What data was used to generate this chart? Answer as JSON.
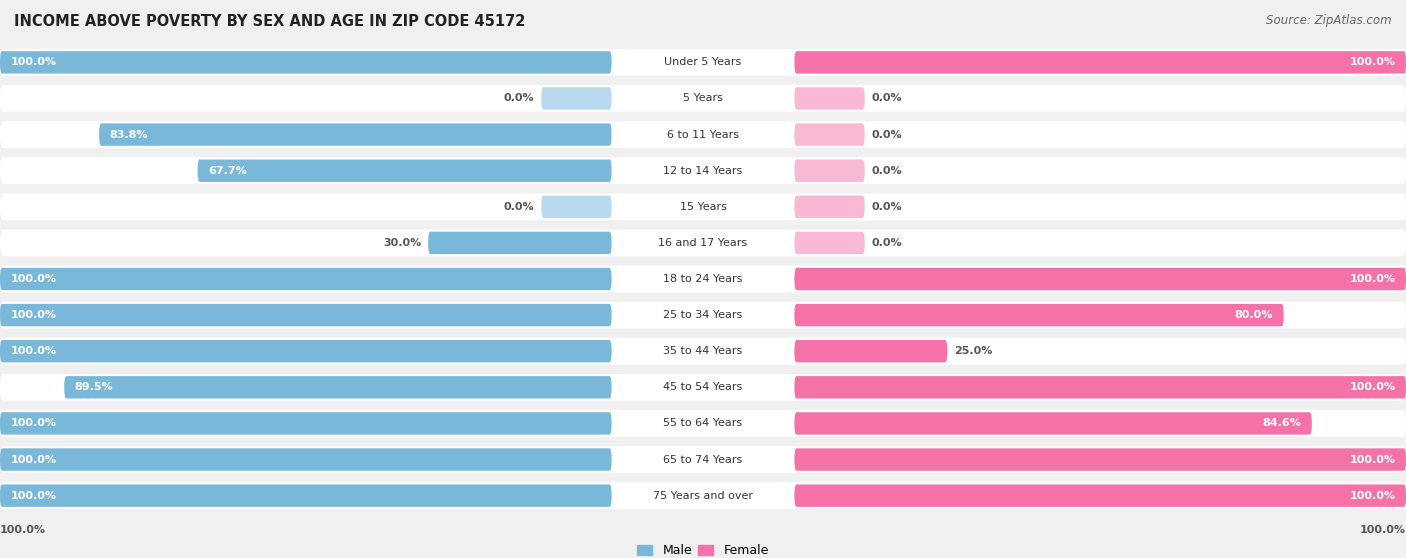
{
  "title": "INCOME ABOVE POVERTY BY SEX AND AGE IN ZIP CODE 45172",
  "source": "Source: ZipAtlas.com",
  "categories": [
    "Under 5 Years",
    "5 Years",
    "6 to 11 Years",
    "12 to 14 Years",
    "15 Years",
    "16 and 17 Years",
    "18 to 24 Years",
    "25 to 34 Years",
    "35 to 44 Years",
    "45 to 54 Years",
    "55 to 64 Years",
    "65 to 74 Years",
    "75 Years and over"
  ],
  "male_values": [
    100.0,
    0.0,
    83.8,
    67.7,
    0.0,
    30.0,
    100.0,
    100.0,
    100.0,
    89.5,
    100.0,
    100.0,
    100.0
  ],
  "female_values": [
    100.0,
    0.0,
    0.0,
    0.0,
    0.0,
    0.0,
    100.0,
    80.0,
    25.0,
    100.0,
    84.6,
    100.0,
    100.0
  ],
  "male_color": "#7ab8d9",
  "female_color": "#f472a8",
  "female_color_light": "#f9b8d3",
  "male_color_light": "#b8d9ee",
  "background_color": "#f0f0f0",
  "row_bg_color": "#ffffff",
  "legend_male_color": "#7ab8d9",
  "legend_female_color": "#f472a8"
}
